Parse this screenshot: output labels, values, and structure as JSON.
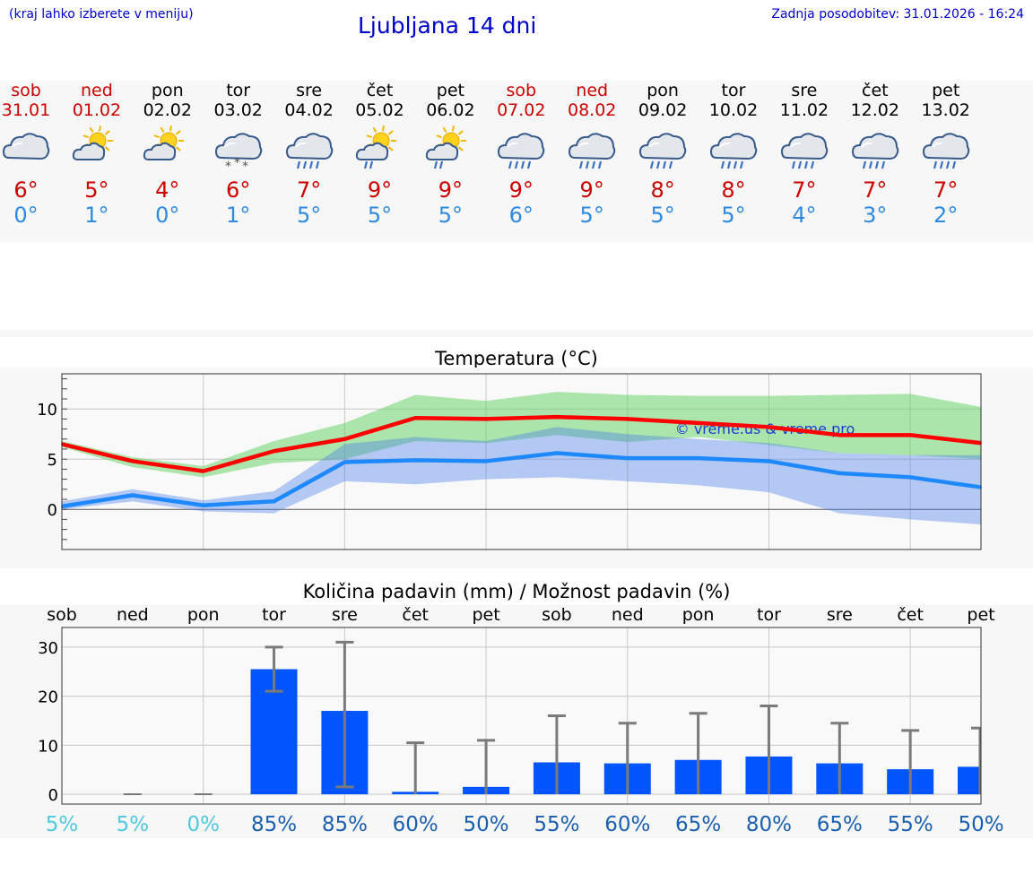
{
  "header": {
    "hint": "(kraj lahko izberete v meniju)",
    "title": "Ljubljana 14 dni",
    "updated": "Zadnja posodobitev: 31.01.2026 - 16:24"
  },
  "days": [
    {
      "name": "sob",
      "date": "31.01",
      "weekend": true,
      "icon": "cloud-rain-icon",
      "wtype": "cloud",
      "tmax": "6°",
      "tmin": "0°"
    },
    {
      "name": "ned",
      "date": "01.02",
      "weekend": true,
      "icon": "sun-cloud-icon",
      "wtype": "suncloud",
      "tmax": "5°",
      "tmin": "1°"
    },
    {
      "name": "pon",
      "date": "02.02",
      "weekend": false,
      "icon": "sun-cloud-icon",
      "wtype": "suncloud",
      "tmax": "4°",
      "tmin": "0°"
    },
    {
      "name": "tor",
      "date": "03.02",
      "weekend": false,
      "icon": "cloud-snow-icon",
      "wtype": "snow",
      "tmax": "6°",
      "tmin": "1°"
    },
    {
      "name": "sre",
      "date": "04.02",
      "weekend": false,
      "icon": "cloud-rain-icon",
      "wtype": "rain",
      "tmax": "7°",
      "tmin": "5°"
    },
    {
      "name": "čet",
      "date": "05.02",
      "weekend": false,
      "icon": "sun-rain-icon",
      "wtype": "sunrain",
      "tmax": "9°",
      "tmin": "5°"
    },
    {
      "name": "pet",
      "date": "06.02",
      "weekend": false,
      "icon": "sun-rain-icon",
      "wtype": "sunrain",
      "tmax": "9°",
      "tmin": "5°"
    },
    {
      "name": "sob",
      "date": "07.02",
      "weekend": true,
      "icon": "cloud-rain-icon",
      "wtype": "rain",
      "tmax": "9°",
      "tmin": "6°"
    },
    {
      "name": "ned",
      "date": "08.02",
      "weekend": true,
      "icon": "cloud-rain-icon",
      "wtype": "rain",
      "tmax": "9°",
      "tmin": "5°"
    },
    {
      "name": "pon",
      "date": "09.02",
      "weekend": false,
      "icon": "cloud-rain-icon",
      "wtype": "rain",
      "tmax": "8°",
      "tmin": "5°"
    },
    {
      "name": "tor",
      "date": "10.02",
      "weekend": false,
      "icon": "cloud-rain-icon",
      "wtype": "rain",
      "tmax": "8°",
      "tmin": "5°"
    },
    {
      "name": "sre",
      "date": "11.02",
      "weekend": false,
      "icon": "cloud-rain-icon",
      "wtype": "rain",
      "tmax": "7°",
      "tmin": "4°"
    },
    {
      "name": "čet",
      "date": "12.02",
      "weekend": false,
      "icon": "cloud-rain-icon",
      "wtype": "rain",
      "tmax": "7°",
      "tmin": "3°"
    },
    {
      "name": "pet",
      "date": "13.02",
      "weekend": false,
      "icon": "cloud-rain-icon",
      "wtype": "rain",
      "tmax": "7°",
      "tmin": "2°"
    }
  ],
  "colors": {
    "weekend": "#cc0000",
    "weekday": "#000000",
    "max": "#ff0000",
    "min": "#1e88ff",
    "bar": "#0055ff"
  },
  "chart_data": [
    {
      "type": "line",
      "title": "Temperatura (°C)",
      "watermark": "© vreme.us & vreme.pro",
      "categories": [
        "sob",
        "ned",
        "pon",
        "tor",
        "sre",
        "čet",
        "pet",
        "sob",
        "ned",
        "pon",
        "tor",
        "sre",
        "čet",
        "pet"
      ],
      "ylim": [
        -4,
        13.5
      ],
      "yticks": [
        0,
        5,
        10
      ],
      "grid": true,
      "series": [
        {
          "key": "max",
          "values": [
            6.5,
            4.8,
            3.8,
            5.8,
            7.0,
            9.1,
            9.0,
            9.2,
            9.0,
            8.6,
            8.2,
            7.4,
            7.4,
            6.6
          ],
          "band_low": [
            6.2,
            4.2,
            3.2,
            4.6,
            5.0,
            6.8,
            6.6,
            7.4,
            6.7,
            7.2,
            6.4,
            5.6,
            5.4,
            5.0
          ],
          "band_high": [
            6.8,
            5.2,
            4.3,
            6.8,
            8.6,
            11.4,
            10.8,
            11.7,
            11.4,
            11.3,
            11.3,
            11.4,
            11.5,
            10.2
          ]
        },
        {
          "key": "min",
          "values": [
            0.3,
            1.4,
            0.4,
            0.8,
            4.7,
            4.9,
            4.8,
            5.6,
            5.1,
            5.1,
            4.8,
            3.6,
            3.2,
            2.2
          ],
          "band_low": [
            0.0,
            0.8,
            -0.2,
            -0.4,
            2.8,
            2.5,
            3.0,
            3.2,
            2.8,
            2.4,
            1.7,
            -0.4,
            -1.0,
            -1.5
          ],
          "band_high": [
            0.8,
            2.0,
            0.9,
            1.8,
            6.5,
            7.2,
            6.8,
            8.2,
            7.5,
            7.0,
            6.6,
            5.6,
            5.4,
            5.4
          ]
        }
      ]
    },
    {
      "type": "bar",
      "title": "Količina padavin (mm) / Možnost padavin (%)",
      "categories": [
        "sob",
        "ned",
        "pon",
        "tor",
        "sre",
        "čet",
        "pet",
        "sob",
        "ned",
        "pon",
        "tor",
        "sre",
        "čet",
        "pet"
      ],
      "ylim": [
        -2,
        34
      ],
      "yticks": [
        0,
        10,
        20,
        30
      ],
      "grid": true,
      "values": [
        0,
        0,
        0,
        25.5,
        17,
        0.5,
        1.5,
        6.5,
        6.3,
        7,
        7.7,
        6.3,
        5.1,
        5.6
      ],
      "err_low": [
        0,
        0,
        0,
        21,
        1.5,
        0,
        0,
        0,
        0,
        0,
        0,
        0,
        0,
        0
      ],
      "err_high": [
        0,
        0,
        0,
        30,
        31,
        10.5,
        11,
        16,
        14.5,
        16.5,
        18,
        14.5,
        13,
        13.5
      ],
      "probabilities": [
        "5%",
        "5%",
        "0%",
        "85%",
        "85%",
        "60%",
        "50%",
        "55%",
        "60%",
        "65%",
        "80%",
        "65%",
        "55%",
        "50%"
      ],
      "prob_colors": [
        "#4fc8e0",
        "#4fc8e0",
        "#4fc8e0",
        "#1a5fb0",
        "#1a5fb0",
        "#1a5fb0",
        "#1a5fb0",
        "#1a5fb0",
        "#1a5fb0",
        "#1a5fb0",
        "#1a5fb0",
        "#1a5fb0",
        "#1a5fb0",
        "#1a5fb0"
      ]
    }
  ]
}
